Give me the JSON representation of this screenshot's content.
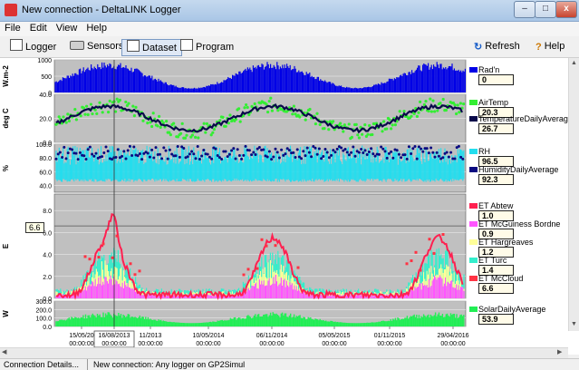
{
  "window": {
    "title": "New connection - DeltaLINK Logger",
    "min_glyph": "–",
    "max_glyph": "□",
    "close_glyph": "x"
  },
  "menu": [
    "File",
    "Edit",
    "View",
    "Help"
  ],
  "toolbar": {
    "logger": "Logger",
    "sensors": "Sensors",
    "dataset": "Dataset",
    "program": "Program",
    "refresh": "Refresh",
    "help": "Help",
    "refresh_glyph": "↻",
    "help_glyph": "?"
  },
  "colors": {
    "radn": "#0000e6",
    "airtemp": "#33ee33",
    "tempavg": "#0a0a4a",
    "rh": "#22ddee",
    "humavg": "#0a0a80",
    "et_abtew": "#ff2050",
    "et_mcg": "#ff55ff",
    "et_harg": "#ffff99",
    "et_turc": "#33eecc",
    "et_mccloud": "#ff3344",
    "solar": "#22ee55",
    "plot_bg": "#c0c0c0",
    "legend_mark": "#1a3a9a"
  },
  "panels": [
    {
      "ylabel": "W.m-2",
      "ticks": [
        "1000",
        "500",
        "0"
      ]
    },
    {
      "ylabel": "deg C",
      "ticks": [
        "40.0",
        "20.0",
        "0.0"
      ]
    },
    {
      "ylabel": "%",
      "ticks": [
        "100.0",
        "80.0",
        "60.0",
        "40.0"
      ]
    },
    {
      "ylabel": "E",
      "ticks": [
        "8.0",
        "6.0",
        "4.0",
        "2.0",
        "0.0"
      ]
    },
    {
      "ylabel": "W",
      "ticks": [
        "300.0",
        "200.0",
        "100.0",
        "0.0"
      ]
    }
  ],
  "legend": [
    {
      "label": "Rad'n",
      "value": "0"
    },
    {
      "label": "AirTemp",
      "value": "20.3"
    },
    {
      "label": "TemperatureDailyAverage",
      "value": "26.7"
    },
    {
      "label": "RH",
      "value": "96.5"
    },
    {
      "label": "HumidityDailyAverage",
      "value": "92.3"
    },
    {
      "label": "ET Abtew",
      "value": "1.0"
    },
    {
      "label": "ET McGuiness Bordne",
      "value": "0.9"
    },
    {
      "label": "ET Hargreaves",
      "value": "1.2"
    },
    {
      "label": "ET Turc",
      "value": "1.4"
    },
    {
      "label": "ET McCloud",
      "value": "6.6"
    },
    {
      "label": "SolarDailyAverage",
      "value": "53.9"
    }
  ],
  "xaxis": [
    {
      "date": "15/05/20",
      "time": "00:00:00"
    },
    {
      "date": "16/08/2013",
      "time": "00:00:00"
    },
    {
      "date": "11/2013",
      "time": "00:00:00"
    },
    {
      "date": "10/05/2014",
      "time": "00:00:00"
    },
    {
      "date": "06/11/2014",
      "time": "00:00:00"
    },
    {
      "date": "05/05/2015",
      "time": "00:00:00"
    },
    {
      "date": "01/11/2015",
      "time": "00:00:00"
    },
    {
      "date": "29/04/2016",
      "time": "00:00:00"
    }
  ],
  "cursor": {
    "value_label": "6.6"
  },
  "status": {
    "left": "Connection Details...",
    "right": "New connection: Any logger on GP2Simul"
  }
}
